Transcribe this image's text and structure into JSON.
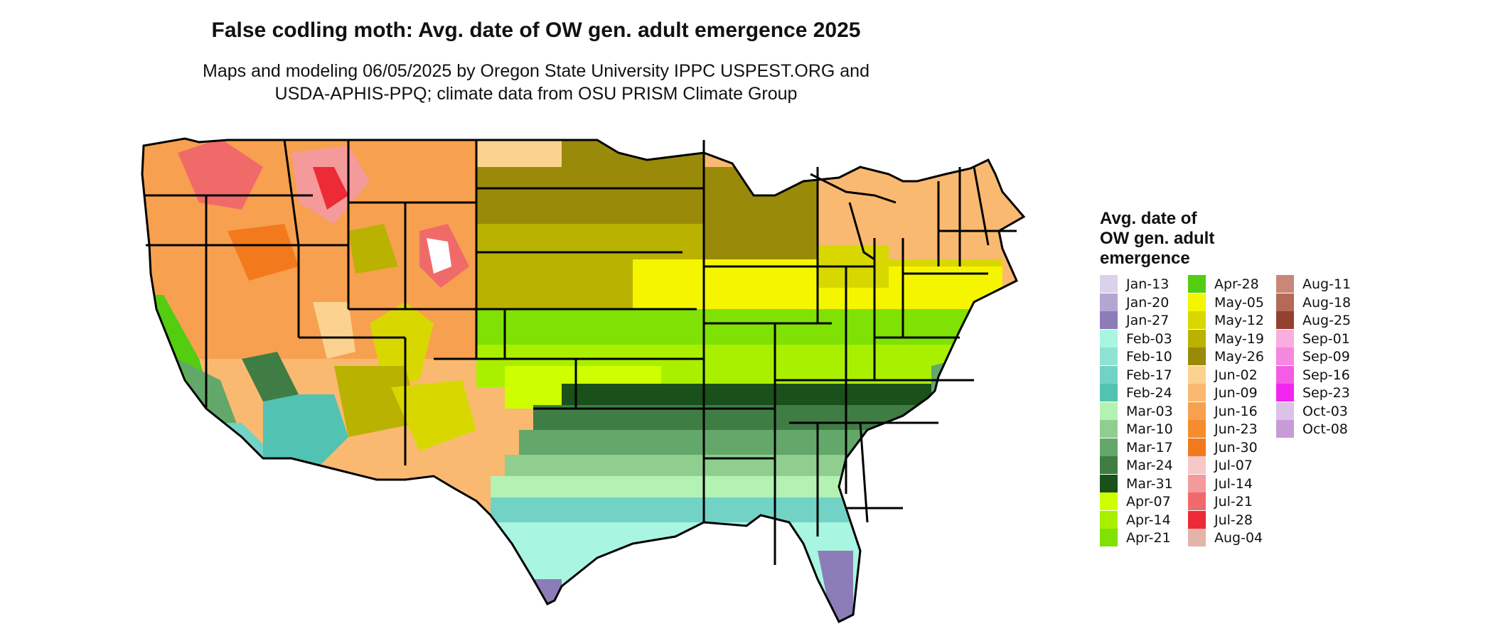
{
  "title": "False codling moth: Avg. date of OW gen. adult emergence 2025",
  "subtitle_line1": "Maps and modeling 06/05/2025 by Oregon State University IPPC USPEST.ORG and",
  "subtitle_line2": "USDA-APHIS-PPQ; climate data from OSU PRISM Climate Group",
  "legend": {
    "title_line1": "Avg. date of",
    "title_line2": "OW gen. adult",
    "title_line3": "emergence",
    "items": [
      {
        "label": "Jan-13",
        "color": "#d9d2ea"
      },
      {
        "label": "Jan-20",
        "color": "#b4a6d2"
      },
      {
        "label": "Jan-27",
        "color": "#8c7db8"
      },
      {
        "label": "Feb-03",
        "color": "#a8f5e1"
      },
      {
        "label": "Feb-10",
        "color": "#8ee3d3"
      },
      {
        "label": "Feb-17",
        "color": "#72d2c6"
      },
      {
        "label": "Feb-24",
        "color": "#52c2b2"
      },
      {
        "label": "Mar-03",
        "color": "#b4f2b4"
      },
      {
        "label": "Mar-10",
        "color": "#8fce8f"
      },
      {
        "label": "Mar-17",
        "color": "#63a86a"
      },
      {
        "label": "Mar-24",
        "color": "#3f7d45"
      },
      {
        "label": "Mar-31",
        "color": "#1a5019"
      },
      {
        "label": "Apr-07",
        "color": "#cdff00"
      },
      {
        "label": "Apr-14",
        "color": "#a9ef00"
      },
      {
        "label": "Apr-21",
        "color": "#7fe104"
      },
      {
        "label": "Apr-28",
        "color": "#54cc10"
      },
      {
        "label": "May-05",
        "color": "#f5f500"
      },
      {
        "label": "May-12",
        "color": "#d8d800"
      },
      {
        "label": "May-19",
        "color": "#b9b200"
      },
      {
        "label": "May-26",
        "color": "#9a8a0a"
      },
      {
        "label": "Jun-02",
        "color": "#fbd28f"
      },
      {
        "label": "Jun-09",
        "color": "#f9b970"
      },
      {
        "label": "Jun-16",
        "color": "#f7a04f"
      },
      {
        "label": "Jun-23",
        "color": "#f58d2f"
      },
      {
        "label": "Jun-30",
        "color": "#f37a1c"
      },
      {
        "label": "Jul-07",
        "color": "#f7c8c8"
      },
      {
        "label": "Jul-14",
        "color": "#f59a9a"
      },
      {
        "label": "Jul-21",
        "color": "#f06a6a"
      },
      {
        "label": "Jul-28",
        "color": "#ec2b36"
      },
      {
        "label": "Aug-04",
        "color": "#e2b4aa"
      },
      {
        "label": "Aug-11",
        "color": "#c88878"
      },
      {
        "label": "Aug-18",
        "color": "#b46a58"
      },
      {
        "label": "Aug-25",
        "color": "#94402e"
      },
      {
        "label": "Sep-01",
        "color": "#f8aede"
      },
      {
        "label": "Sep-09",
        "color": "#f687de"
      },
      {
        "label": "Sep-16",
        "color": "#f55be4"
      },
      {
        "label": "Sep-23",
        "color": "#f326f0"
      },
      {
        "label": "Oct-03",
        "color": "#dcc2e8"
      },
      {
        "label": "Oct-08",
        "color": "#c89ad8"
      }
    ]
  },
  "map_style": {
    "background": "#ffffff",
    "border_color": "#000000",
    "north_zone": "#f9b970",
    "high_terrain": "#f06a6a",
    "snow": "#ffffff"
  }
}
